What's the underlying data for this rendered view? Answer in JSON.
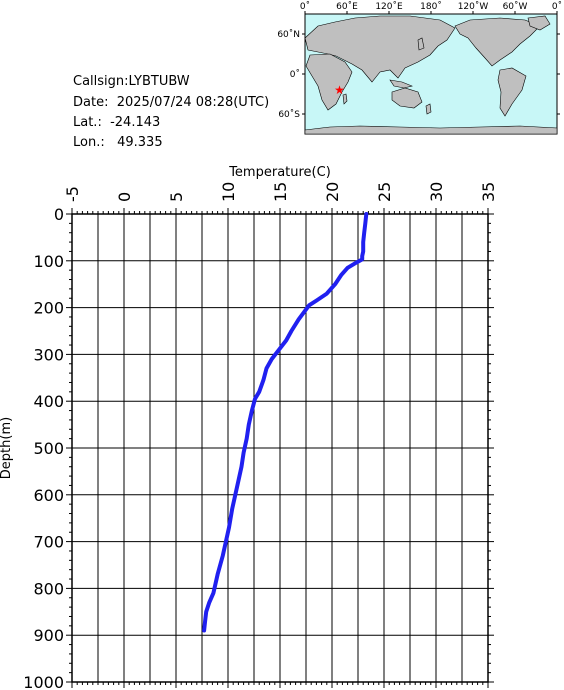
{
  "info": {
    "callsign": "Callsign:LYBTUBW",
    "date": "Date:  2025/07/24 08:28(UTC)",
    "lat": "Lat.:  -24.143",
    "lon": "Lon.:   49.335"
  },
  "map": {
    "lon_labels": [
      "0˚",
      "60˚E",
      "120˚E",
      "180˚",
      "120˚W",
      "60˚W",
      "0˚"
    ],
    "lat_labels": [
      "60˚N",
      "0˚",
      "60˚S"
    ],
    "marker": {
      "lat": -24.143,
      "lon": 49.335
    },
    "colors": {
      "ocean": "#c8f7f7",
      "land": "#bfbfbf",
      "marker": "#ff0000"
    }
  },
  "chart_data": {
    "type": "line",
    "xlabel": "Temperature(C)",
    "ylabel": "Depth(m)",
    "xlim": [
      -5,
      35
    ],
    "ylim": [
      1000,
      0
    ],
    "x_ticks": [
      "-5",
      "0",
      "5",
      "10",
      "15",
      "20",
      "25",
      "30",
      "35"
    ],
    "y_ticks": [
      "0",
      "100",
      "200",
      "300",
      "400",
      "500",
      "600",
      "700",
      "800",
      "900",
      "1000"
    ],
    "grid": true,
    "series": [
      {
        "color": "#2020f0",
        "temperature": [
          23.3,
          23.2,
          23.1,
          23.0,
          23.0,
          22.9,
          22.9,
          22.4,
          21.5,
          20.9,
          20.3,
          19.5,
          18.5,
          17.8,
          17.3,
          16.8,
          16.1,
          15.6,
          14.9,
          14.2,
          13.7,
          13.4,
          13.0,
          12.6,
          12.3,
          12.0,
          11.8,
          11.5,
          11.3,
          11.0,
          10.7,
          10.4,
          10.1,
          9.8,
          9.5,
          9.0,
          8.6,
          8.2,
          7.9,
          7.8,
          7.7
        ],
        "depth": [
          0,
          20,
          40,
          60,
          80,
          90,
          97,
          103,
          115,
          130,
          150,
          170,
          185,
          195,
          210,
          225,
          250,
          270,
          290,
          310,
          330,
          355,
          380,
          395,
          420,
          450,
          480,
          510,
          540,
          570,
          600,
          630,
          670,
          700,
          730,
          770,
          810,
          830,
          850,
          870,
          890
        ]
      }
    ]
  }
}
